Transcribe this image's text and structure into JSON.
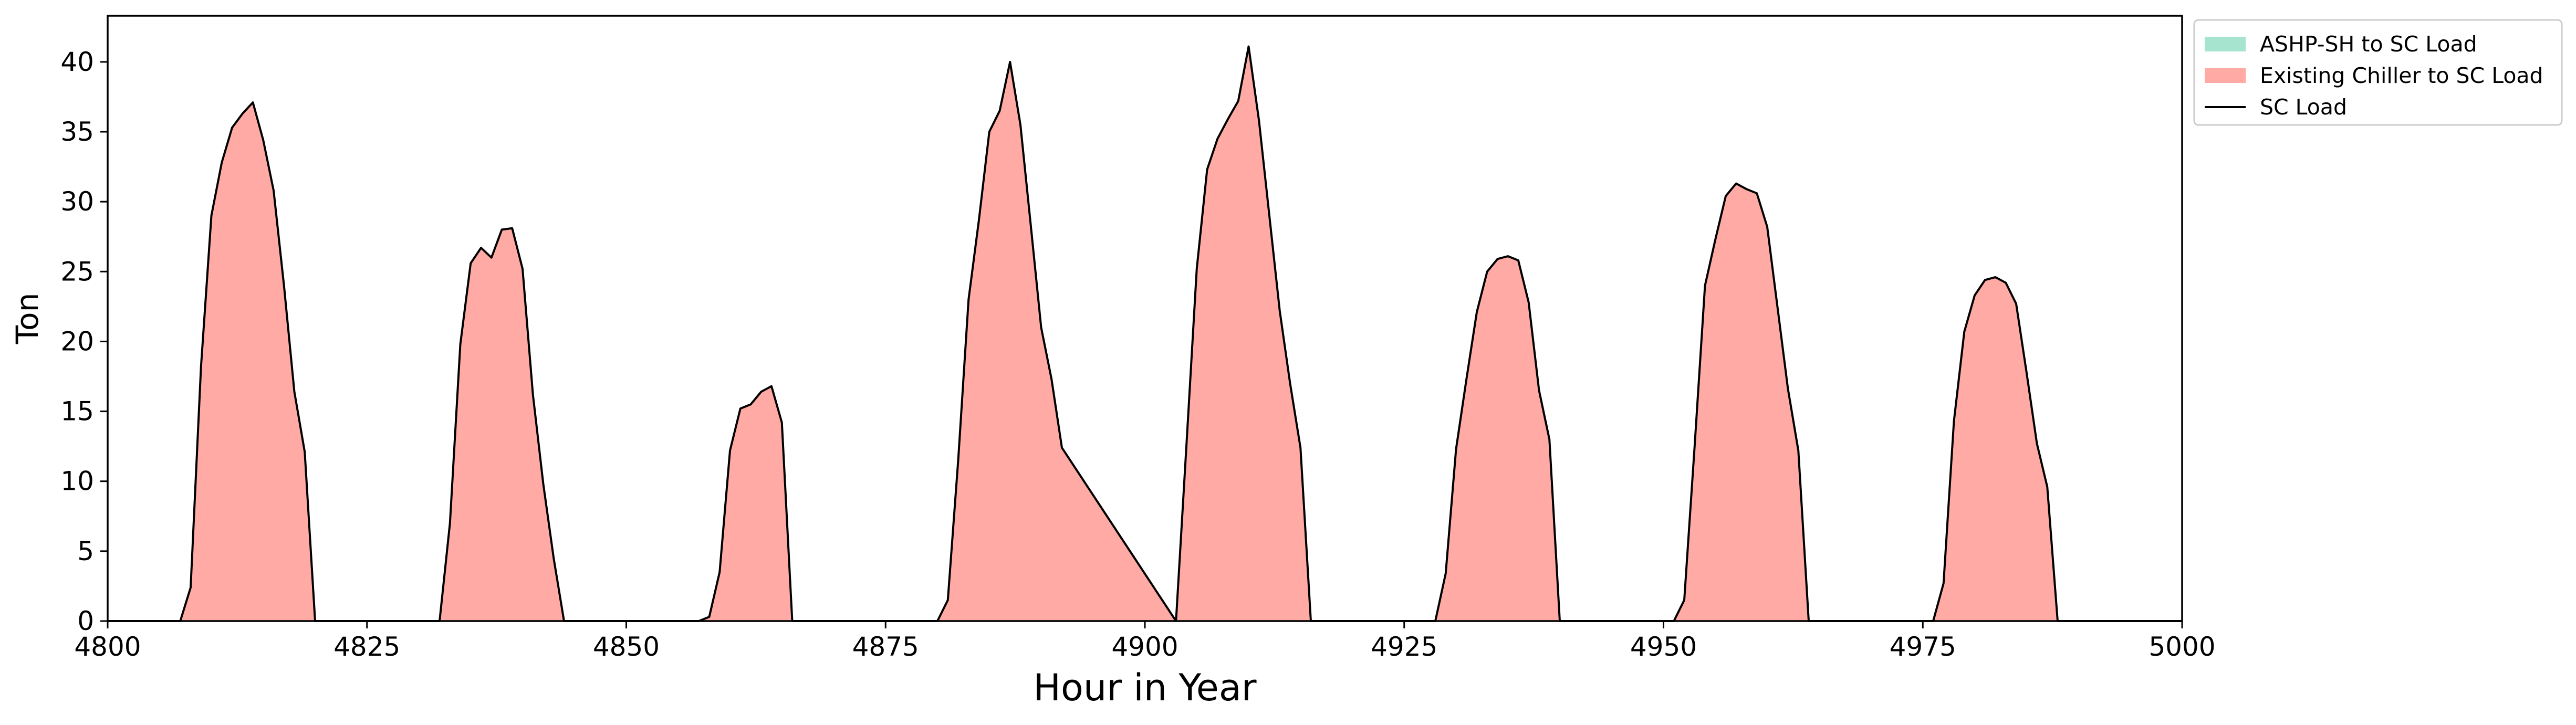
{
  "chart_data": {
    "type": "area",
    "title": "",
    "xlabel": "Hour in Year",
    "ylabel": "Ton",
    "xlim": [
      4800,
      5000
    ],
    "ylim": [
      0,
      43.3
    ],
    "xticks": [
      4800,
      4825,
      4850,
      4875,
      4900,
      4925,
      4950,
      4975,
      5000
    ],
    "yticks": [
      0,
      5,
      10,
      15,
      20,
      25,
      30,
      35,
      40
    ],
    "grid": false,
    "legend_position": "outside-top-right",
    "series": [
      {
        "name": "ASHP-SH to SC Load",
        "kind": "stacked-area",
        "color": "#a6e4d0",
        "values": "all zero"
      },
      {
        "name": "Existing Chiller to SC Load",
        "kind": "stacked-area",
        "color": "#ffaaa5"
      },
      {
        "name": "SC Load",
        "kind": "line",
        "color": "#000000"
      }
    ],
    "x": [
      4800,
      4807,
      4808,
      4809,
      4810,
      4811,
      4812,
      4813,
      4814,
      4815,
      4816,
      4817,
      4818,
      4819,
      4820,
      4832,
      4833,
      4834,
      4835,
      4836,
      4837,
      4838,
      4839,
      4840,
      4841,
      4842,
      4843,
      4844,
      4857,
      4858,
      4859,
      4860,
      4861,
      4862,
      4863,
      4864,
      4865,
      4866,
      4880,
      4881,
      4882,
      4883,
      4884,
      4885,
      4886,
      4887,
      4888,
      4889,
      4890,
      4891,
      4892,
      4903,
      4904,
      4905,
      4906,
      4907,
      4908,
      4909,
      4910,
      4911,
      4912,
      4913,
      4914,
      4915,
      4916,
      4928,
      4929,
      4930,
      4931,
      4932,
      4933,
      4934,
      4935,
      4936,
      4937,
      4938,
      4939,
      4940,
      4951,
      4952,
      4953,
      4954,
      4955,
      4956,
      4957,
      4958,
      4959,
      4960,
      4961,
      4962,
      4963,
      4964,
      4976,
      4977,
      4978,
      4979,
      4980,
      4981,
      4982,
      4983,
      4984,
      4985,
      4986,
      4987,
      4988,
      5000
    ],
    "existing_chiller_to_sc_load": [
      0,
      0,
      2.4,
      18.2,
      29,
      32.8,
      35.3,
      36.3,
      37.1,
      34.4,
      30.8,
      24,
      16.4,
      12.1,
      0,
      0,
      7,
      19.8,
      25.6,
      26.7,
      26,
      28,
      28.1,
      25.2,
      16.2,
      9.8,
      4.5,
      0,
      0,
      0.3,
      3.5,
      12.2,
      15.2,
      15.5,
      16.4,
      16.8,
      14.2,
      0,
      0,
      1.5,
      11.5,
      23,
      28.7,
      35,
      36.5,
      40,
      35.5,
      28.3,
      21,
      17.3,
      12.4,
      0,
      12.5,
      25.2,
      32.3,
      34.5,
      35.9,
      37.2,
      41.1,
      35.8,
      29,
      22.2,
      17,
      12.4,
      0,
      0,
      3.4,
      12.3,
      17.3,
      22.1,
      25,
      25.9,
      26.1,
      25.8,
      22.8,
      16.5,
      13,
      0,
      0,
      1.5,
      12.5,
      24,
      27.3,
      30.4,
      31.3,
      30.9,
      30.6,
      28.2,
      22.4,
      16.6,
      12.2,
      0,
      0,
      2.7,
      14.3,
      20.7,
      23.3,
      24.4,
      24.6,
      24.2,
      22.7,
      17.8,
      12.7,
      9.6,
      0,
      0
    ],
    "ashp_sh_to_sc_load": "all zero",
    "sc_load": "equals existing_chiller_to_sc_load"
  }
}
